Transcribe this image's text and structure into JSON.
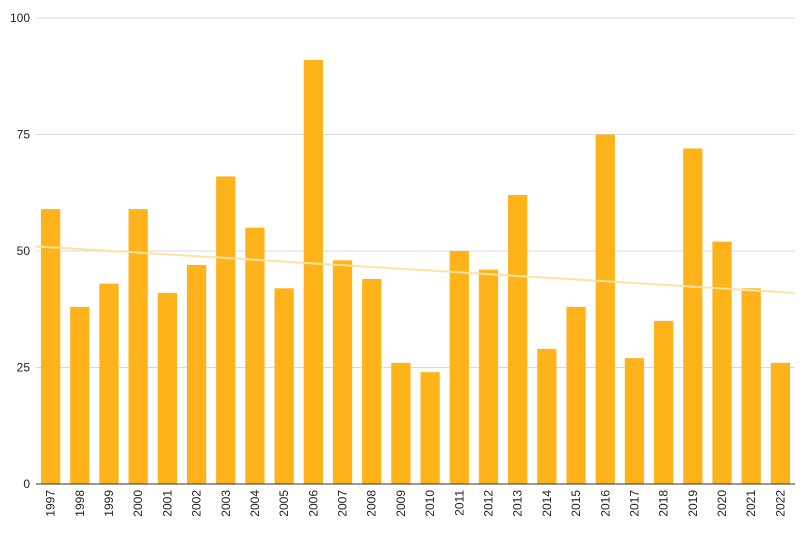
{
  "chart_data": {
    "type": "bar",
    "title": "",
    "xlabel": "",
    "ylabel": "",
    "categories": [
      "1997",
      "1998",
      "1999",
      "2000",
      "2001",
      "2002",
      "2003",
      "2004",
      "2005",
      "2006",
      "2007",
      "2008",
      "2009",
      "2010",
      "2011",
      "2012",
      "2013",
      "2014",
      "2015",
      "2016",
      "2017",
      "2018",
      "2019",
      "2020",
      "2021",
      "2022"
    ],
    "values": [
      59,
      38,
      43,
      59,
      41,
      47,
      66,
      55,
      42,
      91,
      48,
      44,
      26,
      24,
      50,
      46,
      62,
      29,
      38,
      75,
      27,
      35,
      72,
      52,
      42,
      26
    ],
    "ylim": [
      0,
      100
    ],
    "yticks": [
      0,
      25,
      50,
      75,
      100
    ],
    "grid": true,
    "legend": "none",
    "trendline": {
      "type": "linear",
      "start": 51,
      "end": 41
    },
    "colors": {
      "bar": "#FFB31A",
      "trendline": "#FBE3A3",
      "grid": "#D9D9D9",
      "axis": "#333333"
    }
  }
}
